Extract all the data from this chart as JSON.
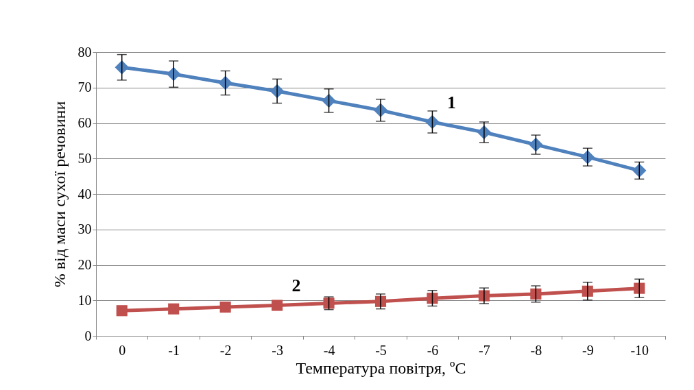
{
  "chart_data": {
    "type": "line",
    "xlabel": "Температура повітря, ºC",
    "ylabel": "% від маси сухої речовини",
    "categories": [
      "0",
      "-1",
      "-2",
      "-3",
      "-4",
      "-5",
      "-6",
      "-7",
      "-8",
      "-9",
      "-10"
    ],
    "series": [
      {
        "name": "1",
        "color": "#4f81bd",
        "marker": "diamond",
        "values": [
          75.7,
          73.8,
          71.3,
          69,
          66.3,
          63.6,
          60.3,
          57.4,
          53.9,
          50.4,
          46.6
        ],
        "errors": [
          3.6,
          3.7,
          3.4,
          3.4,
          3.3,
          3.1,
          3.1,
          2.9,
          2.7,
          2.5,
          2.4
        ]
      },
      {
        "name": "2",
        "color": "#c0504d",
        "marker": "square",
        "values": [
          7.1,
          7.6,
          8.1,
          8.6,
          9.2,
          9.7,
          10.6,
          11.3,
          11.8,
          12.6,
          13.4
        ],
        "errors": [
          null,
          null,
          null,
          null,
          1.8,
          2.1,
          2.2,
          2.2,
          2.3,
          2.5,
          2.6
        ]
      }
    ],
    "ylim": [
      0,
      80
    ],
    "yticks": [
      0,
      10,
      20,
      30,
      40,
      50,
      60,
      70,
      80
    ],
    "grid": "y"
  }
}
